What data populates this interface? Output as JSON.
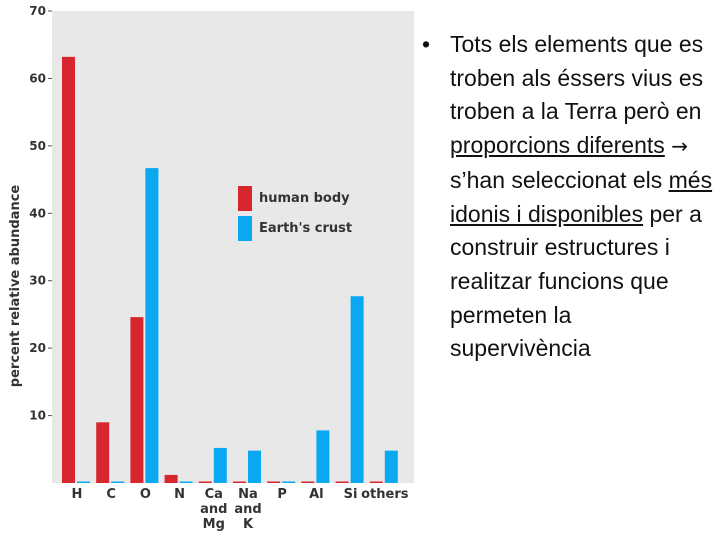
{
  "chart_data": {
    "type": "bar",
    "ylabel": "percent relative abundance",
    "ylim": [
      0,
      70
    ],
    "yticks": [
      10,
      20,
      30,
      40,
      50,
      60,
      70
    ],
    "categories": [
      [
        "H"
      ],
      [
        "C"
      ],
      [
        "O"
      ],
      [
        "N"
      ],
      [
        "Ca",
        "and",
        "Mg"
      ],
      [
        "Na",
        "and",
        "K"
      ],
      [
        "P"
      ],
      [
        "Al"
      ],
      [
        "Si"
      ],
      [
        "others"
      ]
    ],
    "series": [
      {
        "name": "human body",
        "color": "#d8262e",
        "values": [
          63.2,
          9.0,
          24.6,
          1.2,
          0.2,
          0.1,
          0.1,
          0.0,
          0.0,
          0.1
        ]
      },
      {
        "name": "Earth's crust",
        "color": "#0aa8f0",
        "values": [
          0.15,
          0.1,
          46.7,
          0.0,
          5.2,
          4.8,
          0.0,
          7.8,
          27.7,
          4.8
        ]
      }
    ],
    "legend_position": "center-right",
    "grid": false
  },
  "note": {
    "bullet": "•",
    "text_1": "Tots els elements que es troben als éssers vius es troben a la Terra però en ",
    "underline_1": "proporcions diferents",
    "text_2": " s’han seleccionat els ",
    "underline_2": "més idonis i disponibles",
    "text_3": " per a construir estructures i realitzar funcions que permeten la supervivència"
  }
}
